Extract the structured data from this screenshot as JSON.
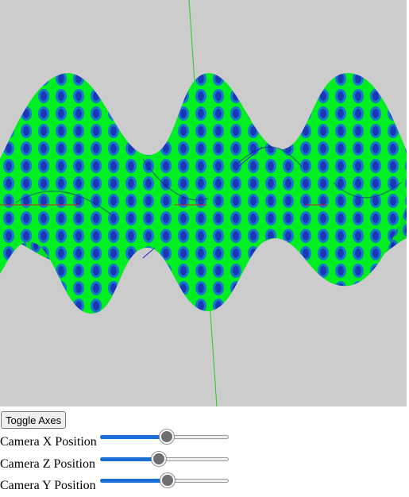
{
  "scene": {
    "colors": {
      "background": "#cccccc",
      "surface_bright": "#00ff22",
      "surface_dark": "#1030c0",
      "axis_x": "#cc2222",
      "axis_y": "#22cc22",
      "axis_z": "#2222cc"
    }
  },
  "controls": {
    "toggle_axes_label": "Toggle Axes",
    "sliders": [
      {
        "label": "Camera X Position",
        "value_fraction": 0.52
      },
      {
        "label": "Camera Z Position",
        "value_fraction": 0.45
      },
      {
        "label": "Camera Y Position",
        "value_fraction": 0.53
      }
    ]
  }
}
